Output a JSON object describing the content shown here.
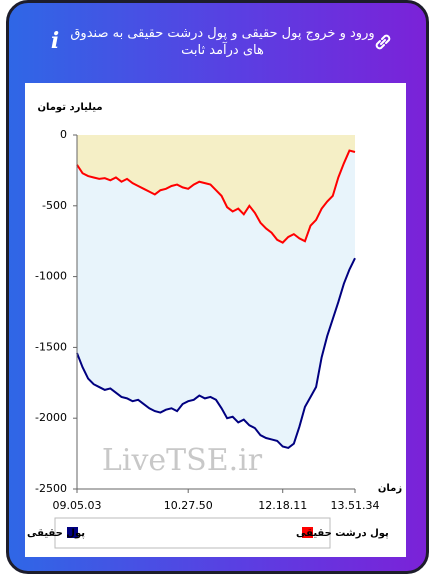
{
  "header": {
    "title": "ورود و خروج پول حقیقی و پول درشت حقیقی به صندوق های درآمد ثابت"
  },
  "chart_data": {
    "type": "line",
    "y_label": "میلیارد تومان",
    "x_label": "زمان",
    "watermark": "LiveTSE.ir",
    "x": [
      0,
      2,
      4,
      6,
      8,
      10,
      12,
      14,
      16,
      18,
      20,
      22,
      24,
      26,
      28,
      30,
      32,
      34,
      36,
      38,
      40,
      42,
      44,
      46,
      48,
      50,
      52,
      54,
      56,
      58,
      60,
      62,
      64,
      66,
      68,
      70,
      72,
      74,
      76,
      78,
      80,
      82,
      84,
      86,
      88,
      90,
      92,
      94,
      96,
      98,
      100
    ],
    "xlim": [
      0,
      100
    ],
    "xticks": [
      {
        "value": 0,
        "label": "09.05.03"
      },
      {
        "value": 40,
        "label": "10.27.50"
      },
      {
        "value": 74,
        "label": "12.18.11"
      },
      {
        "value": 100,
        "label": "13.51.34"
      }
    ],
    "ylim": [
      -2500,
      0
    ],
    "yticks": [
      0,
      -500,
      -1000,
      -1500,
      -2000,
      -2500
    ],
    "series": [
      {
        "name": "پول درشت حقیقی",
        "color": "#ff0000",
        "fill": "#f5efc6",
        "values": [
          -210,
          -270,
          -290,
          -300,
          -310,
          -305,
          -320,
          -300,
          -330,
          -310,
          -340,
          -360,
          -380,
          -400,
          -420,
          -390,
          -380,
          -360,
          -350,
          -370,
          -380,
          -350,
          -330,
          -340,
          -350,
          -390,
          -430,
          -510,
          -540,
          -520,
          -560,
          -500,
          -550,
          -620,
          -660,
          -690,
          -740,
          -760,
          -720,
          -700,
          -730,
          -750,
          -640,
          -600,
          -520,
          -470,
          -430,
          -300,
          -200,
          -110,
          -120
        ]
      },
      {
        "name": "پول حقیقی",
        "color": "#000080",
        "fill": "#e8f4fb",
        "values": [
          -1540,
          -1640,
          -1720,
          -1760,
          -1780,
          -1800,
          -1790,
          -1820,
          -1850,
          -1860,
          -1880,
          -1870,
          -1900,
          -1930,
          -1950,
          -1960,
          -1940,
          -1930,
          -1950,
          -1900,
          -1880,
          -1870,
          -1840,
          -1860,
          -1850,
          -1870,
          -1930,
          -2000,
          -1990,
          -2030,
          -2010,
          -2050,
          -2070,
          -2120,
          -2140,
          -2150,
          -2160,
          -2200,
          -2210,
          -2180,
          -2060,
          -1920,
          -1850,
          -1780,
          -1570,
          -1420,
          -1300,
          -1180,
          -1050,
          -950,
          -870
        ]
      }
    ]
  }
}
